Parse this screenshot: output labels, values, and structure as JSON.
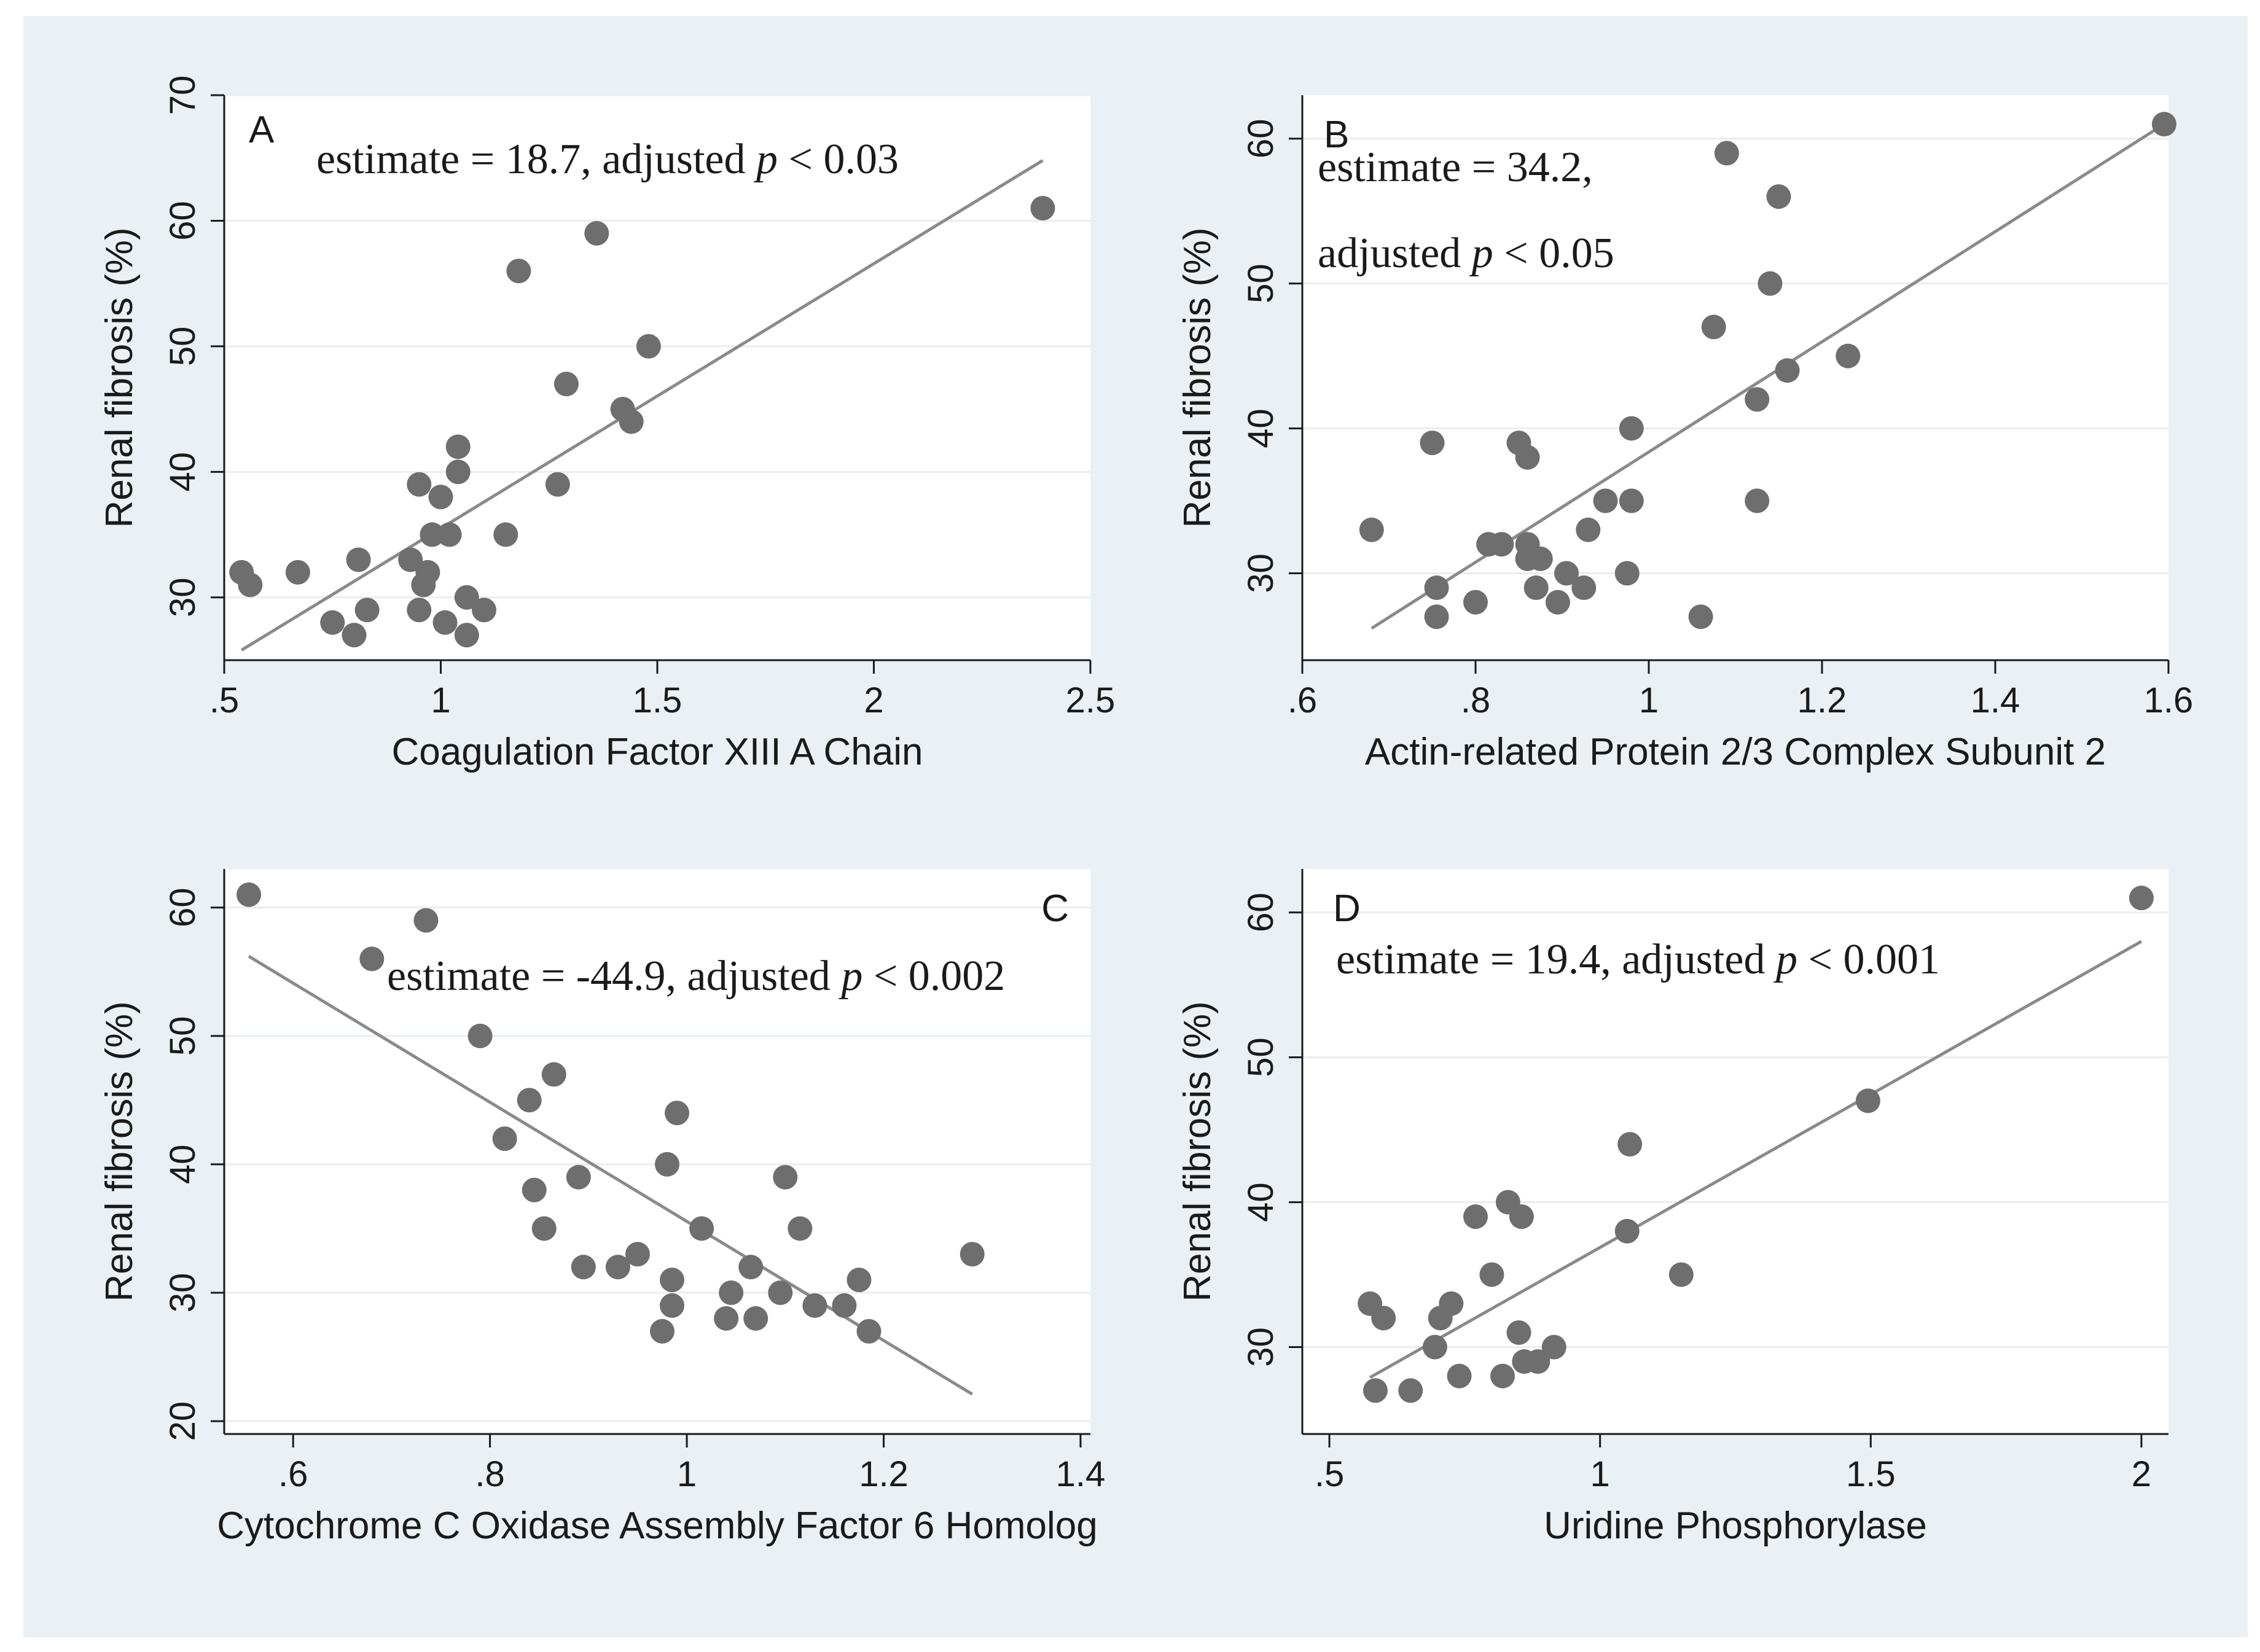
{
  "colors": {
    "outer_background": "#eaf0f3",
    "plot_background": "#ffffff",
    "gridline": "#e8eef1",
    "marker": "#6e6e6e",
    "fit_line": "#8a8a8a",
    "axis": "#1a1a1a"
  },
  "chart_data": [
    {
      "panel": "A",
      "type": "scatter",
      "xlabel": "Coagulation Factor XIII A Chain",
      "ylabel": "Renal fibrosis (%)",
      "annotation": {
        "prefix": "estimate = 18.7, adjusted ",
        "p": "p",
        "suffix": " < 0.03"
      },
      "xlim": [
        0.5,
        2.5
      ],
      "ylim": [
        25,
        70
      ],
      "xticks": [
        0.5,
        1,
        1.5,
        2,
        2.5
      ],
      "xtick_labels": [
        ".5",
        "1",
        "1.5",
        "2",
        "2.5"
      ],
      "yticks": [
        30,
        40,
        50,
        60,
        70
      ],
      "ytick_labels": [
        "30",
        "40",
        "50",
        "60",
        "70"
      ],
      "grid": true,
      "points": [
        [
          0.54,
          32
        ],
        [
          0.56,
          31
        ],
        [
          0.67,
          32
        ],
        [
          0.75,
          28
        ],
        [
          0.8,
          27
        ],
        [
          0.81,
          33
        ],
        [
          0.83,
          29
        ],
        [
          0.93,
          33
        ],
        [
          0.95,
          39
        ],
        [
          0.95,
          29
        ],
        [
          0.96,
          31
        ],
        [
          0.97,
          32
        ],
        [
          0.98,
          35
        ],
        [
          1.0,
          38
        ],
        [
          1.01,
          28
        ],
        [
          1.02,
          35
        ],
        [
          1.04,
          40
        ],
        [
          1.04,
          42
        ],
        [
          1.06,
          27
        ],
        [
          1.06,
          30
        ],
        [
          1.1,
          29
        ],
        [
          1.15,
          35
        ],
        [
          1.18,
          56
        ],
        [
          1.27,
          39
        ],
        [
          1.29,
          47
        ],
        [
          1.36,
          59
        ],
        [
          1.42,
          45
        ],
        [
          1.44,
          44
        ],
        [
          1.48,
          50
        ],
        [
          2.39,
          61
        ]
      ],
      "fit_line": [
        [
          0.54,
          25.8
        ],
        [
          2.39,
          64.8
        ]
      ]
    },
    {
      "panel": "B",
      "type": "scatter",
      "xlabel": "Actin-related Protein 2/3 Complex Subunit 2",
      "ylabel": "Renal fibrosis (%)",
      "annotation_lines": [
        {
          "prefix": "estimate = 34.2,",
          "p": "",
          "suffix": ""
        },
        {
          "prefix": "adjusted ",
          "p": "p",
          "suffix": " < 0.05"
        }
      ],
      "xlim": [
        0.6,
        1.6
      ],
      "ylim": [
        24,
        63
      ],
      "xticks": [
        0.6,
        0.8,
        1.0,
        1.2,
        1.4,
        1.6
      ],
      "xtick_labels": [
        ".6",
        ".8",
        "1",
        "1.2",
        "1.4",
        "1.6"
      ],
      "yticks": [
        30,
        40,
        50,
        60
      ],
      "ytick_labels": [
        "30",
        "40",
        "50",
        "60"
      ],
      "grid": true,
      "points": [
        [
          0.68,
          33
        ],
        [
          0.75,
          39
        ],
        [
          0.755,
          29
        ],
        [
          0.755,
          27
        ],
        [
          0.8,
          28
        ],
        [
          0.815,
          32
        ],
        [
          0.83,
          32
        ],
        [
          0.85,
          39
        ],
        [
          0.86,
          38
        ],
        [
          0.86,
          31
        ],
        [
          0.86,
          32
        ],
        [
          0.87,
          29
        ],
        [
          0.875,
          31
        ],
        [
          0.895,
          28
        ],
        [
          0.905,
          30
        ],
        [
          0.925,
          29
        ],
        [
          0.93,
          33
        ],
        [
          0.95,
          35
        ],
        [
          0.975,
          30
        ],
        [
          0.98,
          35
        ],
        [
          0.98,
          40
        ],
        [
          1.06,
          27
        ],
        [
          1.075,
          47
        ],
        [
          1.09,
          59
        ],
        [
          1.125,
          35
        ],
        [
          1.125,
          42
        ],
        [
          1.14,
          50
        ],
        [
          1.15,
          56
        ],
        [
          1.16,
          44
        ],
        [
          1.23,
          45
        ],
        [
          1.595,
          61
        ]
      ],
      "fit_line": [
        [
          0.68,
          26.2
        ],
        [
          1.595,
          61.0
        ]
      ]
    },
    {
      "panel": "C",
      "type": "scatter",
      "xlabel": "Cytochrome C Oxidase Assembly Factor 6 Homolog",
      "ylabel": "Renal fibrosis (%)",
      "annotation": {
        "prefix": "estimate = -44.9, adjusted ",
        "p": "p",
        "suffix": " < 0.002"
      },
      "xlim": [
        0.53,
        1.41
      ],
      "ylim": [
        19,
        63
      ],
      "xticks": [
        0.6,
        0.8,
        1.0,
        1.2,
        1.4
      ],
      "xtick_labels": [
        ".6",
        ".8",
        "1",
        "1.2",
        "1.4"
      ],
      "yticks": [
        20,
        30,
        40,
        50,
        60
      ],
      "ytick_labels": [
        "20",
        "30",
        "40",
        "50",
        "60"
      ],
      "grid": true,
      "points": [
        [
          0.555,
          61
        ],
        [
          0.68,
          56
        ],
        [
          0.735,
          59
        ],
        [
          0.79,
          50
        ],
        [
          0.815,
          42
        ],
        [
          0.84,
          45
        ],
        [
          0.845,
          38
        ],
        [
          0.855,
          35
        ],
        [
          0.865,
          47
        ],
        [
          0.89,
          39
        ],
        [
          0.895,
          32
        ],
        [
          0.93,
          32
        ],
        [
          0.95,
          33
        ],
        [
          0.975,
          27
        ],
        [
          0.98,
          40
        ],
        [
          0.985,
          31
        ],
        [
          0.985,
          29
        ],
        [
          0.99,
          44
        ],
        [
          1.015,
          35
        ],
        [
          1.04,
          28
        ],
        [
          1.045,
          30
        ],
        [
          1.065,
          32
        ],
        [
          1.07,
          28
        ],
        [
          1.095,
          30
        ],
        [
          1.1,
          39
        ],
        [
          1.115,
          35
        ],
        [
          1.13,
          29
        ],
        [
          1.16,
          29
        ],
        [
          1.175,
          31
        ],
        [
          1.185,
          27
        ],
        [
          1.29,
          33
        ]
      ],
      "fit_line": [
        [
          0.555,
          56.2
        ],
        [
          1.29,
          22.1
        ]
      ]
    },
    {
      "panel": "D",
      "type": "scatter",
      "xlabel": "Uridine Phosphorylase",
      "ylabel": "Renal fibrosis (%)",
      "annotation": {
        "prefix": "estimate = 19.4, adjusted ",
        "p": "p",
        "suffix": " < 0.001"
      },
      "xlim": [
        0.45,
        2.05
      ],
      "ylim": [
        24,
        63
      ],
      "xticks": [
        0.5,
        1,
        1.5,
        2
      ],
      "xtick_labels": [
        ".5",
        "1",
        "1.5",
        "2"
      ],
      "yticks": [
        30,
        40,
        50,
        60
      ],
      "ytick_labels": [
        "30",
        "40",
        "50",
        "60"
      ],
      "grid": true,
      "points": [
        [
          0.575,
          33
        ],
        [
          0.585,
          27
        ],
        [
          0.6,
          32
        ],
        [
          0.65,
          27
        ],
        [
          0.695,
          30
        ],
        [
          0.705,
          32
        ],
        [
          0.725,
          33
        ],
        [
          0.74,
          28
        ],
        [
          0.77,
          39
        ],
        [
          0.8,
          35
        ],
        [
          0.82,
          28
        ],
        [
          0.83,
          40
        ],
        [
          0.85,
          31
        ],
        [
          0.855,
          39
        ],
        [
          0.86,
          29
        ],
        [
          0.885,
          29
        ],
        [
          0.915,
          30
        ],
        [
          1.05,
          38
        ],
        [
          1.055,
          44
        ],
        [
          1.15,
          35
        ],
        [
          1.495,
          47
        ],
        [
          2.0,
          61
        ]
      ],
      "fit_line": [
        [
          0.575,
          27.9
        ],
        [
          2.0,
          58.0
        ]
      ]
    }
  ]
}
